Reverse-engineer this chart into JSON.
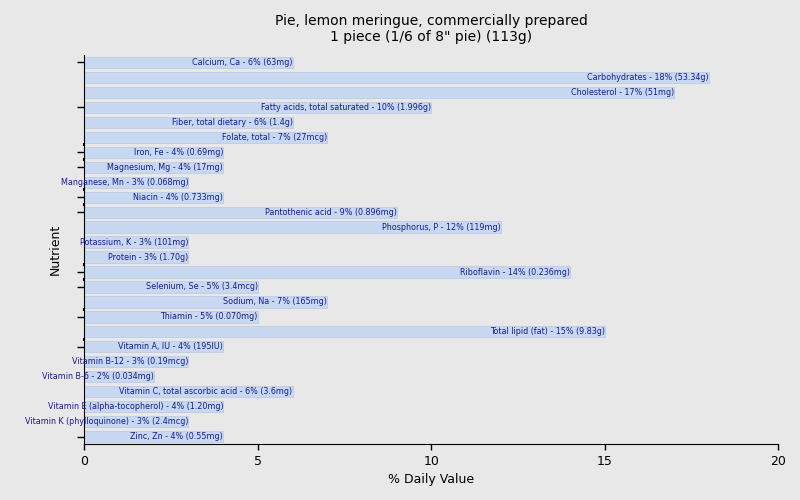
{
  "title": "Pie, lemon meringue, commercially prepared\n1 piece (1/6 of 8\" pie) (113g)",
  "xlabel": "% Daily Value",
  "ylabel": "Nutrient",
  "xlim": [
    0,
    20
  ],
  "xticks": [
    0,
    5,
    10,
    15,
    20
  ],
  "background_color": "#e8e8e8",
  "bar_color": "#c8d8f0",
  "bar_edge_color": "#b0c4de",
  "text_color": "#1a1a8c",
  "nutrients": [
    {
      "label": "Calcium, Ca - 6% (63mg)",
      "value": 6
    },
    {
      "label": "Carbohydrates - 18% (53.34g)",
      "value": 18
    },
    {
      "label": "Cholesterol - 17% (51mg)",
      "value": 17
    },
    {
      "label": "Fatty acids, total saturated - 10% (1.996g)",
      "value": 10
    },
    {
      "label": "Fiber, total dietary - 6% (1.4g)",
      "value": 6
    },
    {
      "label": "Folate, total - 7% (27mcg)",
      "value": 7
    },
    {
      "label": "Iron, Fe - 4% (0.69mg)",
      "value": 4
    },
    {
      "label": "Magnesium, Mg - 4% (17mg)",
      "value": 4
    },
    {
      "label": "Manganese, Mn - 3% (0.068mg)",
      "value": 3
    },
    {
      "label": "Niacin - 4% (0.733mg)",
      "value": 4
    },
    {
      "label": "Pantothenic acid - 9% (0.896mg)",
      "value": 9
    },
    {
      "label": "Phosphorus, P - 12% (119mg)",
      "value": 12
    },
    {
      "label": "Potassium, K - 3% (101mg)",
      "value": 3
    },
    {
      "label": "Protein - 3% (1.70g)",
      "value": 3
    },
    {
      "label": "Riboflavin - 14% (0.236mg)",
      "value": 14
    },
    {
      "label": "Selenium, Se - 5% (3.4mcg)",
      "value": 5
    },
    {
      "label": "Sodium, Na - 7% (165mg)",
      "value": 7
    },
    {
      "label": "Thiamin - 5% (0.070mg)",
      "value": 5
    },
    {
      "label": "Total lipid (fat) - 15% (9.83g)",
      "value": 15
    },
    {
      "label": "Vitamin A, IU - 4% (195IU)",
      "value": 4
    },
    {
      "label": "Vitamin B-12 - 3% (0.19mcg)",
      "value": 3
    },
    {
      "label": "Vitamin B-6 - 2% (0.034mg)",
      "value": 2
    },
    {
      "label": "Vitamin C, total ascorbic acid - 6% (3.6mg)",
      "value": 6
    },
    {
      "label": "Vitamin E (alpha-tocopherol) - 4% (1.20mg)",
      "value": 4
    },
    {
      "label": "Vitamin K (phylloquinone) - 3% (2.4mcg)",
      "value": 3
    },
    {
      "label": "Zinc, Zn - 4% (0.55mg)",
      "value": 4
    }
  ]
}
